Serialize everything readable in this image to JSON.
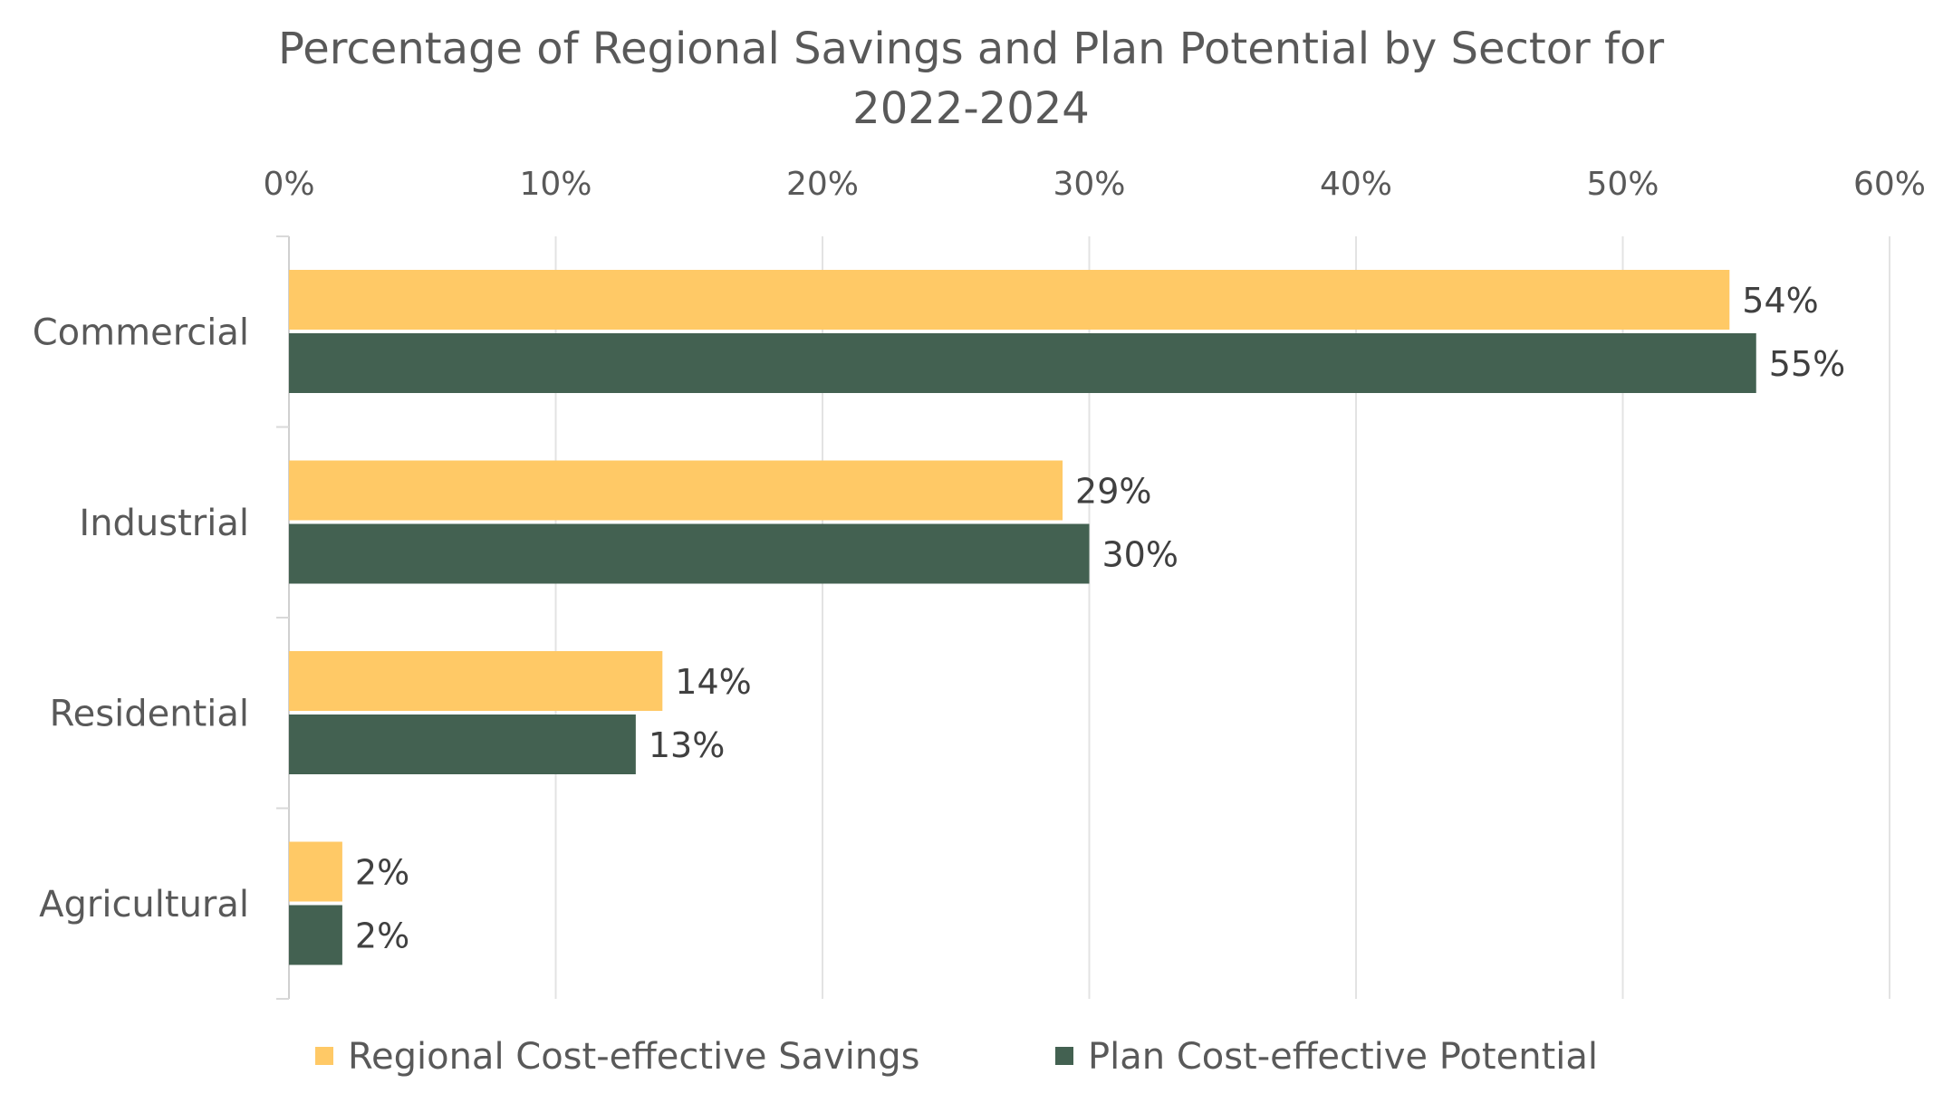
{
  "chart_data": {
    "type": "bar",
    "orientation": "horizontal",
    "title_lines": [
      "Percentage of Regional Savings and Plan Potential by Sector for",
      "2022-2024"
    ],
    "categories": [
      "Commercial",
      "Industrial",
      "Residential",
      "Agricultural"
    ],
    "series": [
      {
        "name": "Regional Cost-effective Savings",
        "color": "#FFC966",
        "values": [
          54,
          29,
          14,
          2
        ],
        "labels": [
          "54%",
          "29%",
          "14%",
          "2%"
        ]
      },
      {
        "name": "Plan Cost-effective Potential",
        "color": "#436151",
        "values": [
          55,
          30,
          13,
          2
        ],
        "labels": [
          "55%",
          "30%",
          "13%",
          "2%"
        ]
      }
    ],
    "xlim": [
      0,
      60
    ],
    "xticks": [
      0,
      10,
      20,
      30,
      40,
      50,
      60
    ],
    "xtick_labels": [
      "0%",
      "10%",
      "20%",
      "30%",
      "40%",
      "50%",
      "60%"
    ],
    "x_axis_position": "top",
    "grid": true,
    "legend_position": "bottom"
  }
}
